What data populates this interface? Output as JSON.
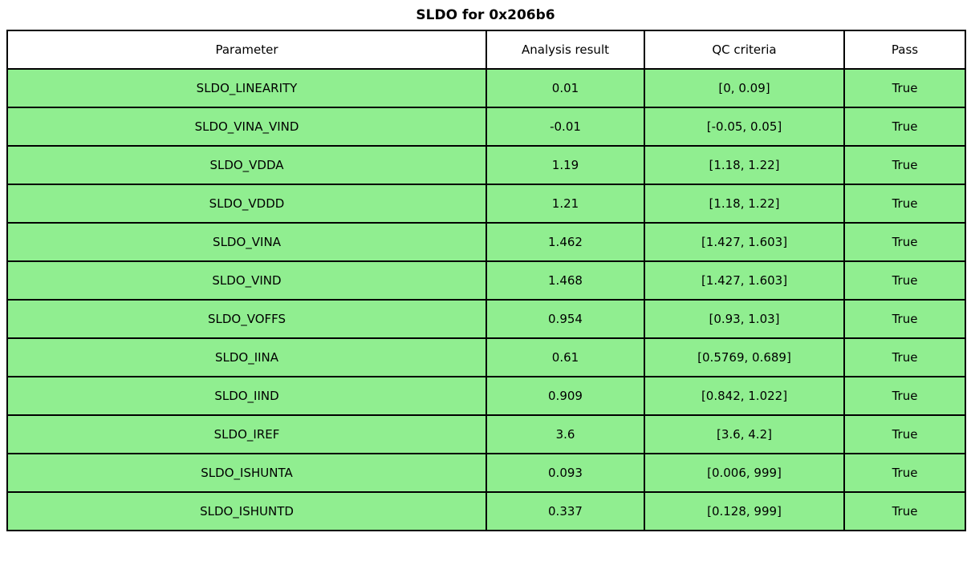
{
  "title": "SLDO for 0x206b6",
  "colors": {
    "pass_row_bg": "#90EE90",
    "header_bg": "#FFFFFF",
    "border": "#000000",
    "text": "#000000"
  },
  "chart_data": {
    "type": "table",
    "title": "SLDO for 0x206b6",
    "columns": [
      "Parameter",
      "Analysis result",
      "QC criteria",
      "Pass"
    ],
    "rows": [
      {
        "parameter": "SLDO_LINEARITY",
        "result": "0.01",
        "criteria": "[0, 0.09]",
        "pass": "True"
      },
      {
        "parameter": "SLDO_VINA_VIND",
        "result": "-0.01",
        "criteria": "[-0.05, 0.05]",
        "pass": "True"
      },
      {
        "parameter": "SLDO_VDDA",
        "result": "1.19",
        "criteria": "[1.18, 1.22]",
        "pass": "True"
      },
      {
        "parameter": "SLDO_VDDD",
        "result": "1.21",
        "criteria": "[1.18, 1.22]",
        "pass": "True"
      },
      {
        "parameter": "SLDO_VINA",
        "result": "1.462",
        "criteria": "[1.427, 1.603]",
        "pass": "True"
      },
      {
        "parameter": "SLDO_VIND",
        "result": "1.468",
        "criteria": "[1.427, 1.603]",
        "pass": "True"
      },
      {
        "parameter": "SLDO_VOFFS",
        "result": "0.954",
        "criteria": "[0.93, 1.03]",
        "pass": "True"
      },
      {
        "parameter": "SLDO_IINA",
        "result": "0.61",
        "criteria": "[0.5769, 0.689]",
        "pass": "True"
      },
      {
        "parameter": "SLDO_IIND",
        "result": "0.909",
        "criteria": "[0.842, 1.022]",
        "pass": "True"
      },
      {
        "parameter": "SLDO_IREF",
        "result": "3.6",
        "criteria": "[3.6, 4.2]",
        "pass": "True"
      },
      {
        "parameter": "SLDO_ISHUNTA",
        "result": "0.093",
        "criteria": "[0.006, 999]",
        "pass": "True"
      },
      {
        "parameter": "SLDO_ISHUNTD",
        "result": "0.337",
        "criteria": "[0.128, 999]",
        "pass": "True"
      }
    ]
  }
}
